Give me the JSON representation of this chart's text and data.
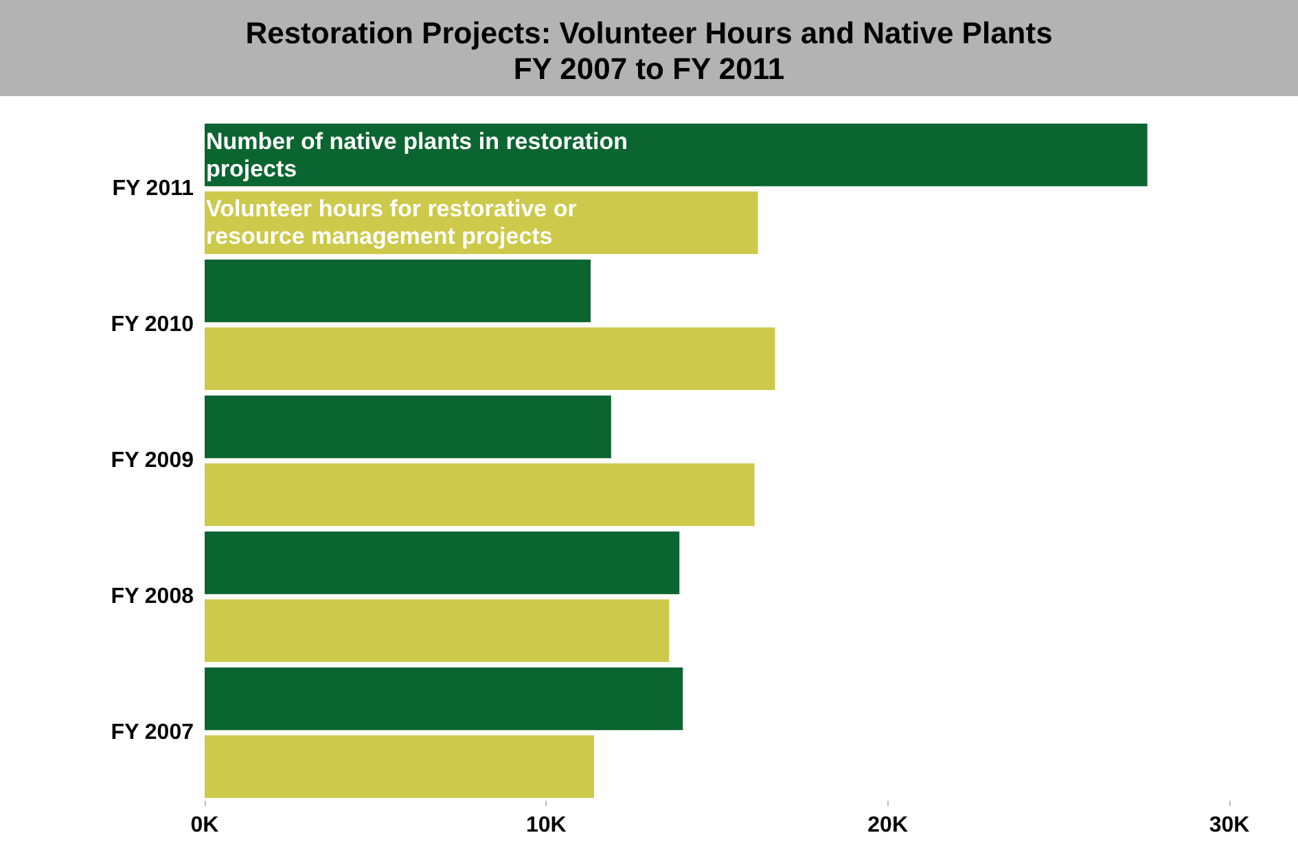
{
  "chart_data": {
    "type": "bar",
    "orientation": "horizontal",
    "title": "Restoration Projects: Volunteer Hours and Native Plants",
    "subtitle": "FY 2007 to FY 2011",
    "categories": [
      "FY 2011",
      "FY 2010",
      "FY 2009",
      "FY 2008",
      "FY 2007"
    ],
    "series": [
      {
        "name": "Number of native plants in restoration projects",
        "color": "#0b6530",
        "values": [
          27.6,
          11.3,
          11.9,
          13.9,
          14.0
        ]
      },
      {
        "name": "Volunteer hours for restorative or resource management projects",
        "color": "#cdc94b",
        "values": [
          16.2,
          16.7,
          16.1,
          13.6,
          11.4
        ]
      }
    ],
    "xlim": [
      0,
      30
    ],
    "xticks": [
      {
        "value": 0,
        "label": "0K"
      },
      {
        "value": 10,
        "label": "10K"
      },
      {
        "value": 20,
        "label": "20K"
      },
      {
        "value": 30,
        "label": "30K"
      }
    ],
    "grid": false,
    "legend": false
  }
}
